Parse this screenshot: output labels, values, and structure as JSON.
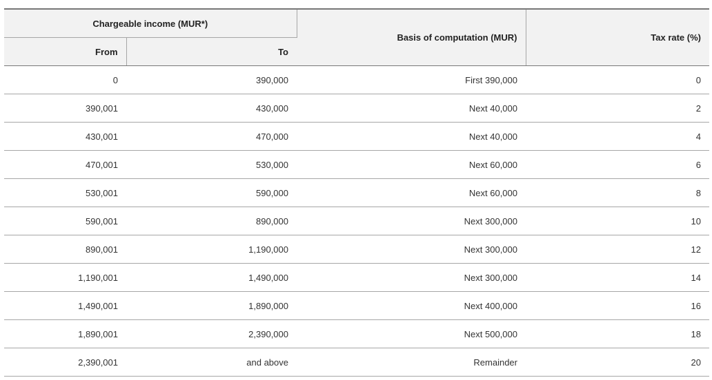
{
  "header": {
    "group": "Chargeable income (MUR*)",
    "from": "From",
    "to": "To",
    "basis": "Basis of computation (MUR)",
    "rate": "Tax rate (%)"
  },
  "table": {
    "rows": [
      [
        "0",
        "390,000",
        "First 390,000",
        "0"
      ],
      [
        "390,001",
        "430,000",
        "Next 40,000",
        "2"
      ],
      [
        "430,001",
        "470,000",
        "Next 40,000",
        "4"
      ],
      [
        "470,001",
        "530,000",
        "Next 60,000",
        "6"
      ],
      [
        "530,001",
        "590,000",
        "Next 60,000",
        "8"
      ],
      [
        "590,001",
        "890,000",
        "Next 300,000",
        "10"
      ],
      [
        "890,001",
        "1,190,000",
        "Next 300,000",
        "12"
      ],
      [
        "1,190,001",
        "1,490,000",
        "Next 300,000",
        "14"
      ],
      [
        "1,490,001",
        "1,890,000",
        "Next 400,000",
        "16"
      ],
      [
        "1,890,001",
        "2,390,000",
        "Next 500,000",
        "18"
      ],
      [
        "2,390,001",
        "and above",
        "Remainder",
        "20"
      ]
    ]
  }
}
